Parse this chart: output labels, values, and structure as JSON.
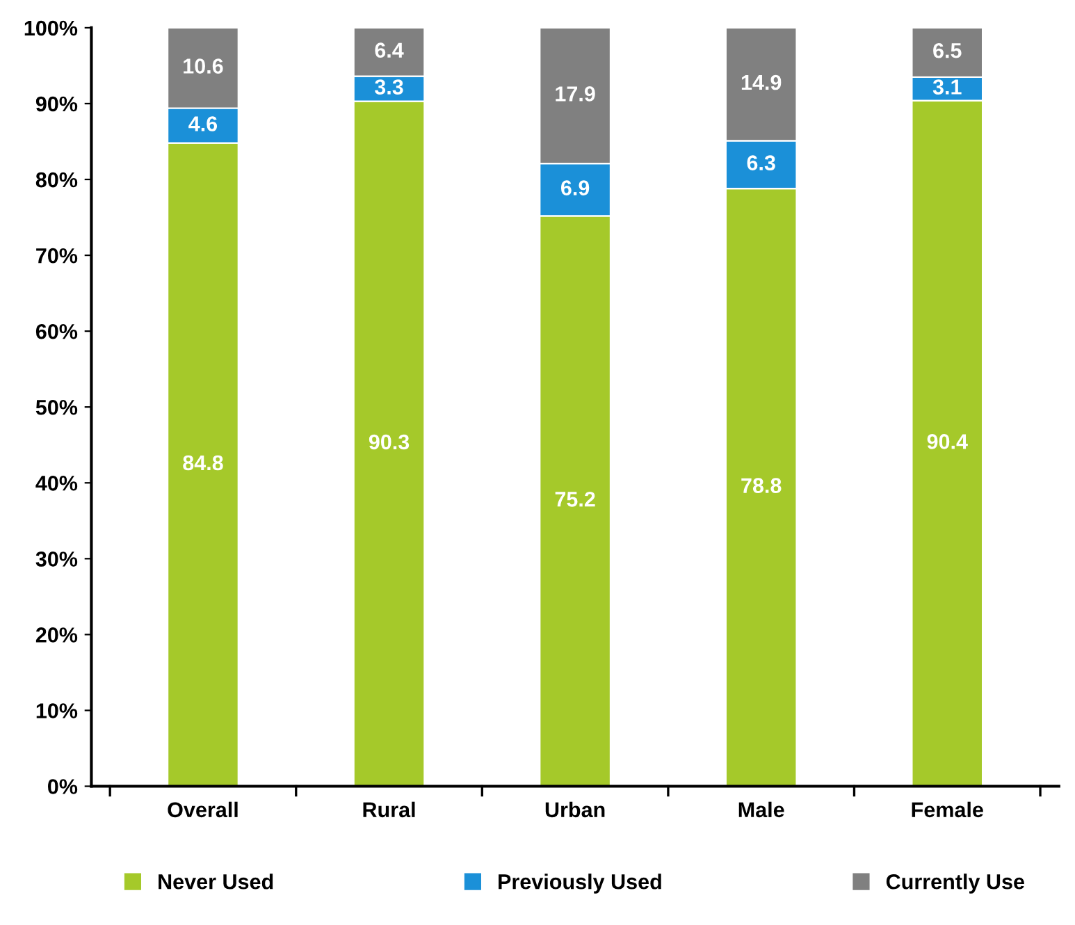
{
  "chart_data": {
    "type": "bar",
    "stacked": true,
    "data_labels": true,
    "grid": false,
    "legend": "bottom",
    "categories": [
      "Overall",
      "Rural",
      "Urban",
      "Male",
      "Female"
    ],
    "series": [
      {
        "name": "Never Used",
        "color": "#a5c92a",
        "values": [
          84.8,
          90.3,
          75.2,
          78.8,
          90.4
        ]
      },
      {
        "name": "Previously Used",
        "color": "#1b90d8",
        "values": [
          4.6,
          3.3,
          6.9,
          6.3,
          3.1
        ]
      },
      {
        "name": "Currently Use",
        "color": "#808080",
        "values": [
          10.6,
          6.4,
          17.9,
          14.9,
          6.5
        ]
      }
    ],
    "ylim": [
      0,
      100
    ],
    "yticks": [
      {
        "value": 0,
        "label": "0%"
      },
      {
        "value": 10,
        "label": "10%"
      },
      {
        "value": 20,
        "label": "20%"
      },
      {
        "value": 30,
        "label": "30%"
      },
      {
        "value": 40,
        "label": "40%"
      },
      {
        "value": 50,
        "label": "50%"
      },
      {
        "value": 60,
        "label": "60%"
      },
      {
        "value": 70,
        "label": "70%"
      },
      {
        "value": 80,
        "label": "80%"
      },
      {
        "value": 90,
        "label": "90%"
      },
      {
        "value": 100,
        "label": "100%"
      }
    ]
  }
}
